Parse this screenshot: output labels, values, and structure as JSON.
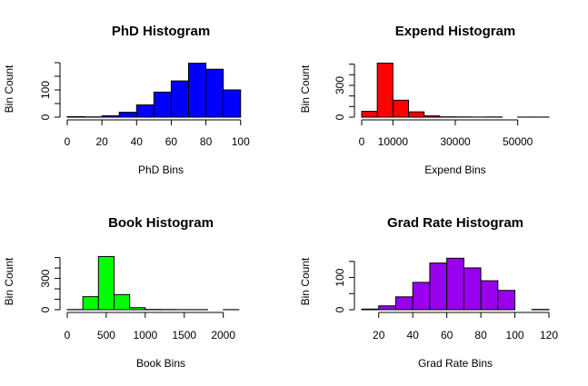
{
  "chart_data": [
    {
      "type": "bar",
      "title": "PhD Histogram",
      "xlabel": "PhD Bins",
      "ylabel": "Bin Count",
      "color": "#0000FF",
      "bin_edges": [
        0,
        10,
        20,
        30,
        40,
        50,
        60,
        70,
        80,
        90,
        100
      ],
      "values": [
        2,
        1,
        5,
        18,
        45,
        92,
        133,
        198,
        176,
        100
      ],
      "xlim": [
        0,
        108
      ],
      "ylim": [
        0,
        210
      ],
      "xticks": [
        0,
        20,
        40,
        60,
        80,
        100
      ],
      "yticks": [
        0,
        100
      ],
      "ytick_minor": [
        50,
        150,
        200
      ]
    },
    {
      "type": "bar",
      "title": "Expend Histogram",
      "xlabel": "Expend Bins",
      "ylabel": "Bin Count",
      "color": "#FF0000",
      "bin_edges": [
        0,
        5000,
        10000,
        15000,
        20000,
        25000,
        30000,
        35000,
        40000,
        45000,
        50000,
        55000,
        60000
      ],
      "values": [
        55,
        510,
        160,
        50,
        12,
        3,
        2,
        1,
        2,
        0,
        1,
        1
      ],
      "xlim": [
        0,
        60000
      ],
      "ylim": [
        0,
        540
      ],
      "xticks": [
        0,
        10000,
        30000,
        50000
      ],
      "yticks": [
        0,
        100,
        200,
        300,
        400,
        500
      ],
      "ytick_labels": [
        "0",
        "",
        "",
        "300",
        "",
        ""
      ]
    },
    {
      "type": "bar",
      "title": "Book Histogram",
      "xlabel": "Book Bins",
      "ylabel": "Bin Count",
      "color": "#00FF00",
      "bin_edges": [
        0,
        200,
        400,
        600,
        800,
        1000,
        1200,
        1400,
        1600,
        1800,
        2000,
        2200
      ],
      "values": [
        2,
        125,
        510,
        145,
        20,
        3,
        2,
        1,
        1,
        0,
        1
      ],
      "xlim": [
        0,
        2400
      ],
      "ylim": [
        0,
        540
      ],
      "xticks": [
        0,
        500,
        1000,
        1500,
        2000
      ],
      "yticks": [
        0,
        100,
        200,
        300,
        400,
        500
      ],
      "ytick_labels": [
        "0",
        "",
        "",
        "300",
        "",
        ""
      ]
    },
    {
      "type": "bar",
      "title": "Grad Rate Histogram",
      "xlabel": "Grad Rate Bins",
      "ylabel": "Bin Count",
      "color": "#9900EE",
      "bin_edges": [
        10,
        20,
        30,
        40,
        50,
        60,
        70,
        80,
        90,
        100,
        110,
        120
      ],
      "values": [
        2,
        12,
        40,
        85,
        145,
        160,
        130,
        90,
        60,
        0,
        1
      ],
      "xlim": [
        10,
        120
      ],
      "ylim": [
        0,
        175
      ],
      "xticks": [
        20,
        40,
        60,
        80,
        100,
        120
      ],
      "yticks": [
        0,
        100
      ],
      "ytick_minor": [
        50,
        150
      ]
    }
  ]
}
